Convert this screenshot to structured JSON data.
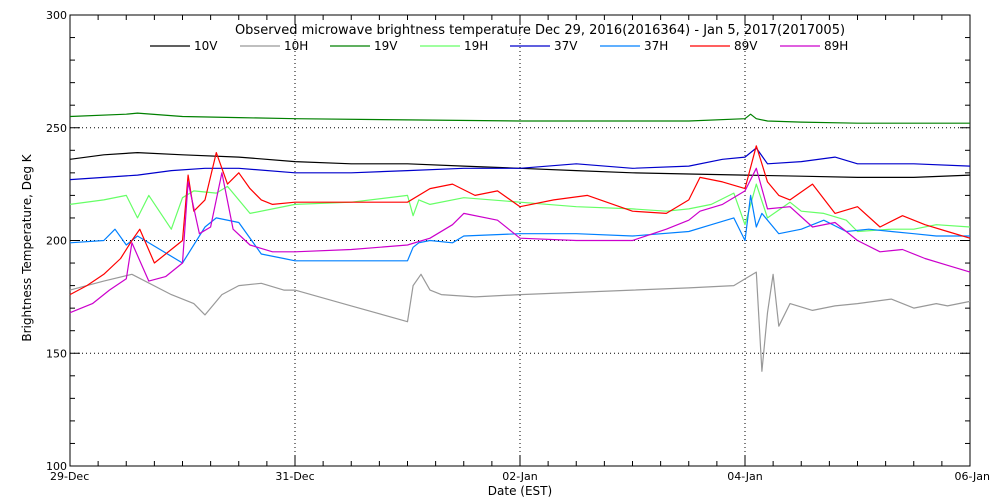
{
  "chart_data": {
    "type": "line",
    "title": "Observed microwave brightness temperature Dec 29, 2016(2016364) - Jan  5, 2017(2017005)",
    "xlabel": "Date (EST)",
    "ylabel": "Brightness Temperature, Deg K",
    "xlim": [
      0,
      8
    ],
    "ylim": [
      100,
      300
    ],
    "x_ticks": [
      {
        "label": "29-Dec",
        "value": 0
      },
      {
        "label": "31-Dec",
        "value": 2
      },
      {
        "label": "02-Jan",
        "value": 4
      },
      {
        "label": "04-Jan",
        "value": 6
      },
      {
        "label": "06-Jan",
        "value": 8
      }
    ],
    "y_ticks": [
      {
        "label": "100",
        "value": 100
      },
      {
        "label": "150",
        "value": 150
      },
      {
        "label": "200",
        "value": 200
      },
      {
        "label": "250",
        "value": 250
      },
      {
        "label": "300",
        "value": 300
      }
    ],
    "grid": true,
    "legend_position": "top",
    "series": [
      {
        "name": "10V",
        "color": "#000000",
        "x": [
          0,
          0.3,
          0.6,
          1.0,
          1.5,
          2.0,
          2.5,
          3.0,
          3.5,
          4.0,
          4.5,
          5.0,
          5.5,
          6.0,
          6.5,
          7.0,
          7.5,
          8.0
        ],
        "y": [
          236,
          238,
          239,
          238,
          237,
          235,
          234,
          234,
          233,
          232,
          231,
          230,
          229.5,
          229,
          228.5,
          228,
          228,
          229
        ]
      },
      {
        "name": "10H",
        "color": "#999999",
        "x": [
          0,
          0.3,
          0.55,
          0.9,
          1.1,
          1.2,
          1.35,
          1.5,
          1.7,
          1.9,
          2.0,
          2.5,
          3.0,
          3.05,
          3.12,
          3.2,
          3.3,
          3.6,
          4.0,
          4.5,
          5.0,
          5.5,
          5.9,
          6.1,
          6.15,
          6.2,
          6.25,
          6.3,
          6.4,
          6.6,
          6.8,
          7.0,
          7.3,
          7.5,
          7.7,
          7.8,
          8.0
        ],
        "y": [
          178,
          182,
          185,
          176,
          172,
          167,
          176,
          180,
          181,
          178,
          178,
          171,
          164,
          180,
          185,
          178,
          176,
          175,
          176,
          177,
          178,
          179,
          180,
          186,
          142,
          168,
          185,
          162,
          172,
          169,
          171,
          172,
          174,
          170,
          172,
          171,
          173
        ]
      },
      {
        "name": "19V",
        "color": "#008000",
        "x": [
          0,
          0.5,
          0.6,
          1.0,
          1.5,
          2.0,
          3.0,
          4.0,
          5.0,
          5.5,
          6.0,
          6.05,
          6.1,
          6.2,
          6.5,
          7.0,
          7.5,
          8.0
        ],
        "y": [
          255,
          256,
          256.5,
          255,
          254.5,
          254,
          253.5,
          253,
          253,
          253,
          254,
          256,
          254,
          253,
          252.5,
          252,
          252,
          252
        ]
      },
      {
        "name": "19H",
        "color": "#66ff66",
        "x": [
          0,
          0.3,
          0.5,
          0.6,
          0.7,
          0.9,
          1.0,
          1.1,
          1.3,
          1.4,
          1.6,
          2.0,
          2.5,
          3.0,
          3.05,
          3.1,
          3.2,
          3.5,
          4.0,
          4.5,
          5.0,
          5.3,
          5.5,
          5.7,
          5.9,
          6.0,
          6.1,
          6.2,
          6.4,
          6.5,
          6.7,
          6.9,
          7.0,
          7.3,
          7.5,
          7.7,
          8.0
        ],
        "y": [
          216,
          218,
          220,
          210,
          220,
          205,
          219,
          222,
          221,
          224,
          212,
          216,
          217,
          220,
          211,
          218,
          216,
          219,
          217,
          215,
          214,
          213,
          214,
          216,
          221,
          207,
          225,
          210,
          217,
          213,
          212,
          209,
          204,
          205,
          205,
          207,
          206
        ]
      },
      {
        "name": "37V",
        "color": "#0000cc",
        "x": [
          0,
          0.3,
          0.6,
          0.9,
          1.2,
          1.5,
          2.0,
          2.5,
          3.0,
          3.5,
          4.0,
          4.5,
          5.0,
          5.5,
          5.8,
          6.0,
          6.1,
          6.2,
          6.5,
          6.8,
          7.0,
          7.5,
          8.0
        ],
        "y": [
          227,
          228,
          229,
          231,
          232,
          232,
          230,
          230,
          231,
          232,
          232,
          234,
          232,
          233,
          236,
          237,
          241,
          234,
          235,
          237,
          234,
          234,
          233
        ]
      },
      {
        "name": "37H",
        "color": "#0080ff",
        "x": [
          0,
          0.3,
          0.4,
          0.5,
          0.6,
          0.8,
          1.0,
          1.2,
          1.3,
          1.5,
          1.7,
          1.9,
          2.0,
          3.0,
          3.05,
          3.1,
          3.2,
          3.4,
          3.5,
          4.0,
          4.5,
          5.0,
          5.5,
          5.7,
          5.9,
          6.0,
          6.05,
          6.1,
          6.15,
          6.3,
          6.5,
          6.7,
          6.9,
          7.1,
          7.3,
          7.5,
          7.7,
          7.9,
          8.0
        ],
        "y": [
          199,
          200,
          205,
          198,
          202,
          196,
          190,
          206,
          210,
          208,
          194,
          192,
          191,
          191,
          197,
          199,
          200,
          199,
          202,
          203,
          203,
          202,
          204,
          207,
          210,
          200,
          220,
          206,
          212,
          203,
          205,
          209,
          204,
          205,
          204,
          203,
          202,
          202,
          202
        ]
      },
      {
        "name": "89V",
        "color": "#ff0000",
        "x": [
          0,
          0.15,
          0.3,
          0.45,
          0.55,
          0.62,
          0.75,
          0.9,
          1.0,
          1.05,
          1.1,
          1.2,
          1.3,
          1.4,
          1.5,
          1.6,
          1.7,
          1.8,
          2.0,
          2.5,
          3.0,
          3.2,
          3.4,
          3.6,
          3.8,
          4.0,
          4.3,
          4.6,
          5.0,
          5.3,
          5.5,
          5.6,
          5.8,
          6.0,
          6.1,
          6.2,
          6.3,
          6.4,
          6.6,
          6.8,
          7.0,
          7.2,
          7.4,
          7.6,
          7.8,
          8.0
        ],
        "y": [
          176,
          180,
          185,
          192,
          200,
          205,
          190,
          196,
          200,
          229,
          213,
          218,
          239,
          225,
          230,
          223,
          218,
          216,
          217,
          217,
          217,
          223,
          225,
          220,
          222,
          215,
          218,
          220,
          213,
          212,
          218,
          228,
          226,
          223,
          242,
          226,
          220,
          218,
          225,
          212,
          215,
          206,
          211,
          207,
          204,
          201
        ]
      },
      {
        "name": "89H",
        "color": "#cc00cc",
        "x": [
          0,
          0.2,
          0.35,
          0.5,
          0.55,
          0.7,
          0.85,
          1.0,
          1.05,
          1.15,
          1.25,
          1.35,
          1.45,
          1.6,
          1.8,
          2.0,
          2.5,
          3.0,
          3.2,
          3.4,
          3.5,
          3.8,
          4.0,
          4.5,
          5.0,
          5.3,
          5.5,
          5.6,
          5.8,
          6.0,
          6.1,
          6.2,
          6.4,
          6.6,
          6.8,
          7.0,
          7.2,
          7.4,
          7.6,
          7.8,
          8.0
        ],
        "y": [
          168,
          172,
          178,
          183,
          199,
          182,
          184,
          190,
          226,
          203,
          206,
          230,
          205,
          198,
          195,
          195,
          196,
          198,
          201,
          207,
          212,
          209,
          201,
          200,
          200,
          205,
          209,
          213,
          216,
          222,
          232,
          214,
          215,
          206,
          208,
          200,
          195,
          196,
          192,
          189,
          186
        ]
      }
    ]
  }
}
